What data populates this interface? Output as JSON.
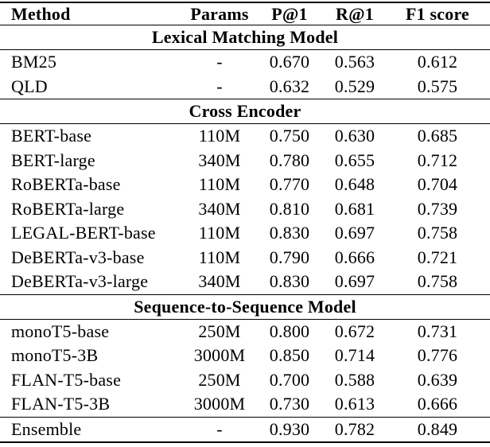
{
  "table": {
    "columns": [
      {
        "key": "method",
        "label": "Method"
      },
      {
        "key": "params",
        "label": "Params"
      },
      {
        "key": "p1",
        "label": "P@1"
      },
      {
        "key": "r1",
        "label": "R@1"
      },
      {
        "key": "f1",
        "label": "F1 score"
      }
    ],
    "sections": [
      {
        "title": "Lexical Matching Model",
        "rows": [
          {
            "method": "BM25",
            "params": "-",
            "p1": "0.670",
            "r1": "0.563",
            "f1": "0.612"
          },
          {
            "method": "QLD",
            "params": "-",
            "p1": "0.632",
            "r1": "0.529",
            "f1": "0.575"
          }
        ]
      },
      {
        "title": "Cross Encoder",
        "rows": [
          {
            "method": "BERT-base",
            "params": "110M",
            "p1": "0.750",
            "r1": "0.630",
            "f1": "0.685"
          },
          {
            "method": "BERT-large",
            "params": "340M",
            "p1": "0.780",
            "r1": "0.655",
            "f1": "0.712"
          },
          {
            "method": "RoBERTa-base",
            "params": "110M",
            "p1": "0.770",
            "r1": "0.648",
            "f1": "0.704"
          },
          {
            "method": "RoBERTa-large",
            "params": "340M",
            "p1": "0.810",
            "r1": "0.681",
            "f1": "0.739"
          },
          {
            "method": "LEGAL-BERT-base",
            "params": "110M",
            "p1": "0.830",
            "r1": "0.697",
            "f1": "0.758"
          },
          {
            "method": "DeBERTa-v3-base",
            "params": "110M",
            "p1": "0.790",
            "r1": "0.666",
            "f1": "0.721"
          },
          {
            "method": "DeBERTa-v3-large",
            "params": "340M",
            "p1": "0.830",
            "r1": "0.697",
            "f1": "0.758"
          }
        ]
      },
      {
        "title": "Sequence-to-Sequence Model",
        "rows": [
          {
            "method": "monoT5-base",
            "params": "250M",
            "p1": "0.800",
            "r1": "0.672",
            "f1": "0.731"
          },
          {
            "method": "monoT5-3B",
            "params": "3000M",
            "p1": "0.850",
            "r1": "0.714",
            "f1": "0.776"
          },
          {
            "method": "FLAN-T5-base",
            "params": "250M",
            "p1": "0.700",
            "r1": "0.588",
            "f1": "0.639"
          },
          {
            "method": "FLAN-T5-3B",
            "params": "3000M",
            "p1": "0.730",
            "r1": "0.613",
            "f1": "0.666"
          }
        ]
      },
      {
        "title": null,
        "rows": [
          {
            "method": "Ensemble",
            "params": "-",
            "p1": "0.930",
            "r1": "0.782",
            "f1": "0.849"
          }
        ]
      }
    ]
  }
}
